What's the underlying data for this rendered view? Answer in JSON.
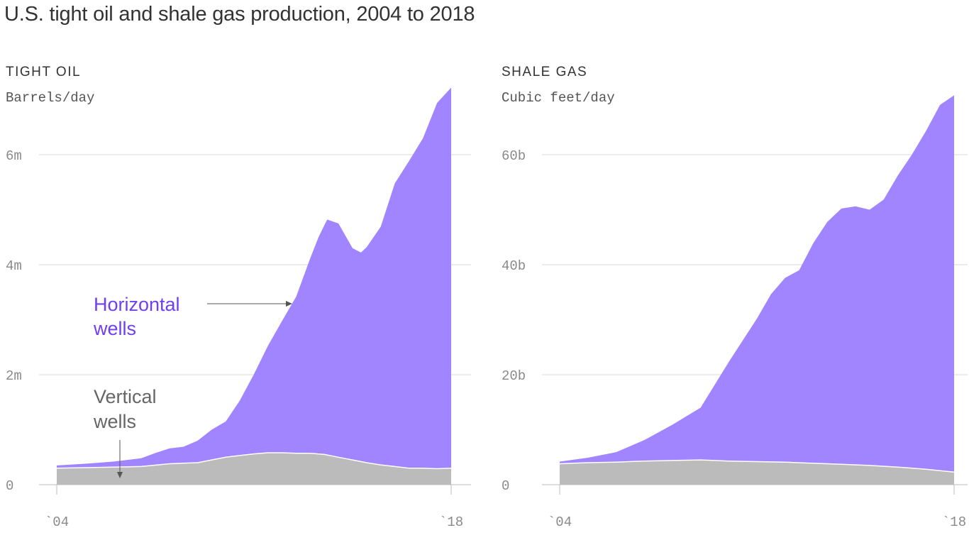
{
  "title": "U.S. tight oil and shale gas production, 2004 to 2018",
  "colors": {
    "horizontal": "#a184ff",
    "vertical": "#bbbbbb",
    "horizontal_label": "#6f3ff5",
    "vertical_label": "#666666",
    "grid": "#d8d8d8"
  },
  "annotations": {
    "horizontal": [
      "Horizontal",
      "wells"
    ],
    "vertical": [
      "Vertical",
      "wells"
    ]
  },
  "chart_data": [
    {
      "type": "area",
      "stacked": true,
      "title": "TIGHT OIL",
      "ylabel": "Barrels/day",
      "ylim": [
        0,
        7000000
      ],
      "yticks": [
        0,
        2000000,
        4000000,
        6000000
      ],
      "ytick_labels": [
        "0",
        "2m",
        "4m",
        "6m"
      ],
      "xlim": [
        2004,
        2018
      ],
      "xtick_labels": [
        "`04",
        "`18"
      ],
      "grid": true,
      "series": [
        {
          "name": "Vertical wells",
          "points": [
            [
              2004,
              0.3
            ],
            [
              2005,
              0.31
            ],
            [
              2006,
              0.32
            ],
            [
              2007,
              0.33
            ],
            [
              2008,
              0.38
            ],
            [
              2009,
              0.4
            ],
            [
              2009.5,
              0.45
            ],
            [
              2010,
              0.5
            ],
            [
              2010.5,
              0.53
            ],
            [
              2011,
              0.56
            ],
            [
              2011.5,
              0.58
            ],
            [
              2012,
              0.58
            ],
            [
              2012.5,
              0.57
            ],
            [
              2013,
              0.57
            ],
            [
              2013.5,
              0.55
            ],
            [
              2014,
              0.5
            ],
            [
              2014.5,
              0.45
            ],
            [
              2015,
              0.4
            ],
            [
              2015.5,
              0.36
            ],
            [
              2016,
              0.33
            ],
            [
              2016.5,
              0.3
            ],
            [
              2017,
              0.3
            ],
            [
              2017.5,
              0.29
            ],
            [
              2018,
              0.3
            ]
          ]
        },
        {
          "name": "Horizontal wells",
          "points": [
            [
              2004,
              0.05
            ],
            [
              2005,
              0.07
            ],
            [
              2006,
              0.1
            ],
            [
              2007,
              0.15
            ],
            [
              2007.5,
              0.22
            ],
            [
              2008,
              0.28
            ],
            [
              2008.5,
              0.3
            ],
            [
              2009,
              0.4
            ],
            [
              2009.5,
              0.55
            ],
            [
              2010,
              0.65
            ],
            [
              2010.5,
              1.0
            ],
            [
              2011,
              1.45
            ],
            [
              2011.5,
              1.95
            ],
            [
              2012,
              2.4
            ],
            [
              2012.5,
              2.85
            ],
            [
              2013,
              3.55
            ],
            [
              2013.3,
              3.95
            ],
            [
              2013.6,
              4.28
            ],
            [
              2014,
              4.25
            ],
            [
              2014.5,
              3.85
            ],
            [
              2014.8,
              3.8
            ],
            [
              2015,
              3.92
            ],
            [
              2015.5,
              4.33
            ],
            [
              2016,
              5.15
            ],
            [
              2016.5,
              5.58
            ],
            [
              2017,
              6.0
            ],
            [
              2017.5,
              6.65
            ],
            [
              2018,
              6.92
            ]
          ]
        }
      ]
    },
    {
      "type": "area",
      "stacked": true,
      "title": "SHALE GAS",
      "ylabel": "Cubic feet/day",
      "ylim": [
        0,
        72000000000
      ],
      "yticks": [
        0,
        20000000000,
        40000000000,
        60000000000
      ],
      "ytick_labels": [
        "0",
        "20b",
        "40b",
        "60b"
      ],
      "xlim": [
        2004,
        2018
      ],
      "xtick_labels": [
        "`04",
        "`18"
      ],
      "grid": true,
      "series": [
        {
          "name": "Vertical wells",
          "points": [
            [
              2004,
              3.8
            ],
            [
              2005,
              4.0
            ],
            [
              2006,
              4.1
            ],
            [
              2007,
              4.3
            ],
            [
              2008,
              4.4
            ],
            [
              2009,
              4.5
            ],
            [
              2010,
              4.3
            ],
            [
              2011,
              4.2
            ],
            [
              2012,
              4.1
            ],
            [
              2013,
              3.9
            ],
            [
              2014,
              3.7
            ],
            [
              2015,
              3.5
            ],
            [
              2016,
              3.2
            ],
            [
              2017,
              2.8
            ],
            [
              2018,
              2.3
            ]
          ]
        },
        {
          "name": "Horizontal wells",
          "points": [
            [
              2004,
              0.4
            ],
            [
              2005,
              0.9
            ],
            [
              2006,
              1.8
            ],
            [
              2007,
              3.8
            ],
            [
              2008,
              6.5
            ],
            [
              2009,
              9.5
            ],
            [
              2010,
              18.0
            ],
            [
              2010.5,
              22.0
            ],
            [
              2011,
              26.0
            ],
            [
              2011.5,
              30.5
            ],
            [
              2012,
              33.5
            ],
            [
              2012.5,
              35.0
            ],
            [
              2013,
              40.0
            ],
            [
              2013.5,
              44.0
            ],
            [
              2014,
              46.5
            ],
            [
              2014.5,
              47.0
            ],
            [
              2015,
              46.5
            ],
            [
              2015.5,
              48.5
            ],
            [
              2016,
              53.0
            ],
            [
              2016.5,
              57.0
            ],
            [
              2017,
              61.5
            ],
            [
              2017.5,
              66.5
            ],
            [
              2018,
              68.5
            ]
          ]
        }
      ]
    }
  ]
}
